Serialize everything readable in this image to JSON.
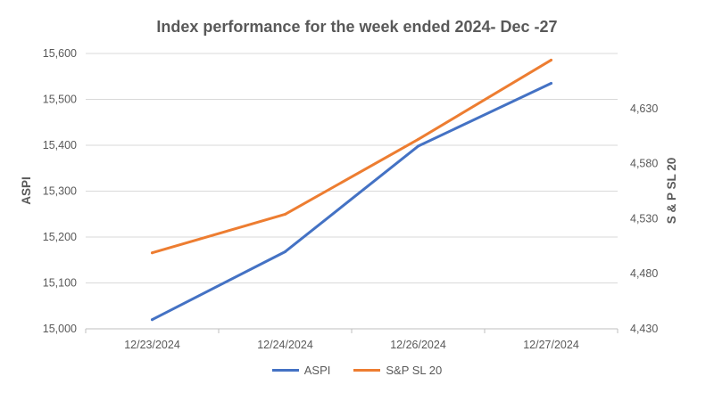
{
  "chart_data": {
    "type": "line",
    "title": "Index performance for the week ended 2024- Dec -27",
    "categories": [
      "12/23/2024",
      "12/24/2024",
      "12/26/2024",
      "12/27/2024"
    ],
    "ylabel": "ASPI",
    "y2label": "S & P SL 20",
    "ylim": [
      15000,
      15600
    ],
    "y_ticks": [
      "15,000",
      "15,100",
      "15,200",
      "15,300",
      "15,400",
      "15,500",
      "15,600"
    ],
    "y2lim": [
      4430,
      4680
    ],
    "y2_ticks": [
      "4,430",
      "4,480",
      "4,530",
      "4,580",
      "4,630"
    ],
    "grid": "horizontal",
    "legend_position": "bottom",
    "series": [
      {
        "name": "ASPI",
        "axis": "left",
        "color": "#4472C4",
        "values": [
          15020,
          15168,
          15398,
          15535
        ]
      },
      {
        "name": "S&P SL 20",
        "axis": "right",
        "color": "#ED7D31",
        "values": [
          4499,
          4534,
          4602,
          4674
        ]
      }
    ]
  }
}
